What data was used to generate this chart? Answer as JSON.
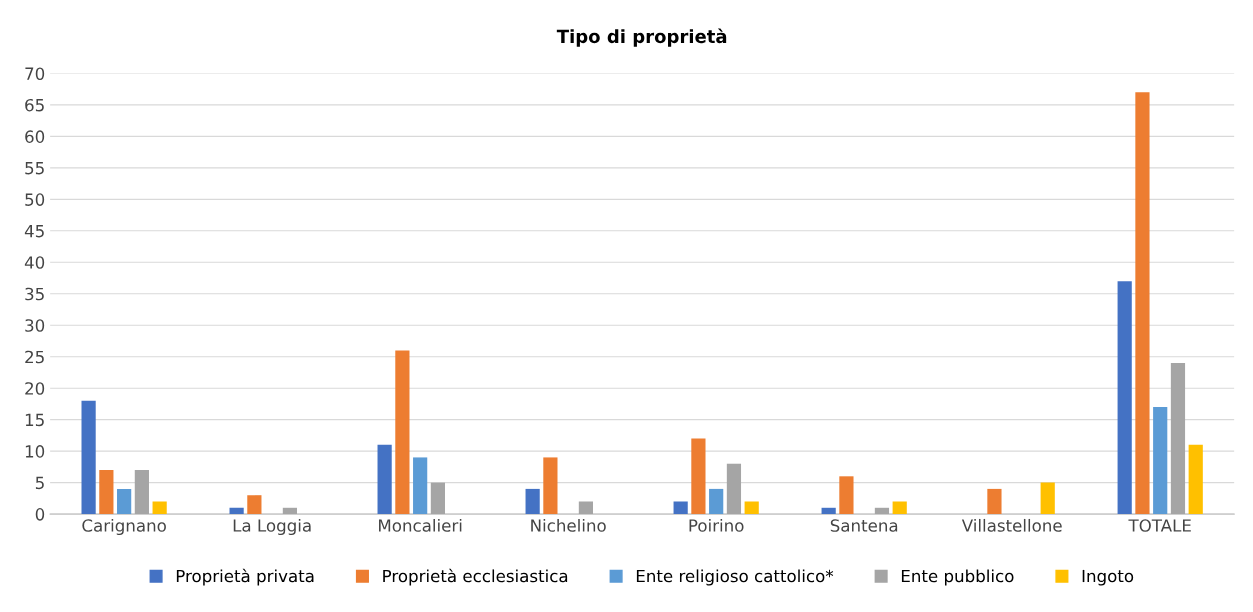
{
  "chart_data": {
    "type": "bar",
    "title": "Tipo di proprietà",
    "categories": [
      "Carignano",
      "La Loggia",
      "Moncalieri",
      "Nichelino",
      "Poirino",
      "Santena",
      "Villastellone",
      "TOTALE"
    ],
    "series": [
      {
        "name": "Proprietà privata",
        "color": "#4472c4",
        "values": [
          18,
          1,
          11,
          4,
          2,
          1,
          0,
          37
        ]
      },
      {
        "name": "Proprietà ecclesiastica",
        "color": "#ed7d31",
        "values": [
          7,
          3,
          26,
          9,
          12,
          6,
          4,
          67
        ]
      },
      {
        "name": "Ente religioso cattolico*",
        "color": "#5b9bd5",
        "values": [
          4,
          0,
          9,
          0,
          4,
          0,
          0,
          17
        ]
      },
      {
        "name": "Ente pubblico",
        "color": "#a5a5a5",
        "values": [
          7,
          1,
          5,
          2,
          8,
          1,
          0,
          24
        ]
      },
      {
        "name": "Ingoto",
        "color": "#ffc000",
        "values": [
          2,
          0,
          0,
          0,
          2,
          2,
          5,
          11
        ]
      }
    ],
    "ylim": [
      0,
      70
    ],
    "yticks": [
      0,
      5,
      10,
      15,
      20,
      25,
      30,
      35,
      40,
      45,
      50,
      55,
      60,
      65,
      70
    ],
    "grid": "y",
    "legend": "bottom"
  }
}
